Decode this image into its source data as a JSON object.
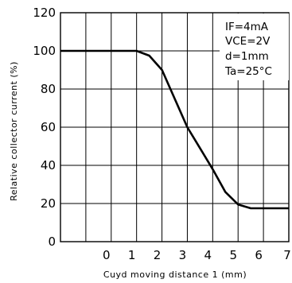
{
  "chart_data": {
    "type": "line",
    "xlabel": "Cuyd moving distance 1 (mm)",
    "ylabel": "Relative collector current (%)",
    "xlim": [
      -2,
      7
    ],
    "ylim": [
      0,
      120
    ],
    "x_ticks": [
      "0",
      "1",
      "2",
      "3",
      "4",
      "5",
      "6",
      "7"
    ],
    "x_tick_values": [
      0,
      1,
      2,
      3,
      4,
      5,
      6,
      7
    ],
    "y_ticks": [
      "0",
      "20",
      "40",
      "60",
      "80",
      "100",
      "120"
    ],
    "y_tick_values": [
      0,
      20,
      40,
      60,
      80,
      100,
      120
    ],
    "grid": true,
    "annotations": [
      "IF=4mA",
      "VCE=2V",
      "d=1mm",
      "Ta=25°C"
    ],
    "series": [
      {
        "x": [
          -2,
          1,
          1.5,
          2,
          2.5,
          3,
          3.5,
          4,
          4.5,
          5,
          5.5,
          6,
          7
        ],
        "y": [
          100,
          100,
          97.5,
          90,
          75,
          60,
          49,
          38,
          26,
          19.5,
          17.5,
          17.5,
          17.5
        ]
      }
    ]
  }
}
